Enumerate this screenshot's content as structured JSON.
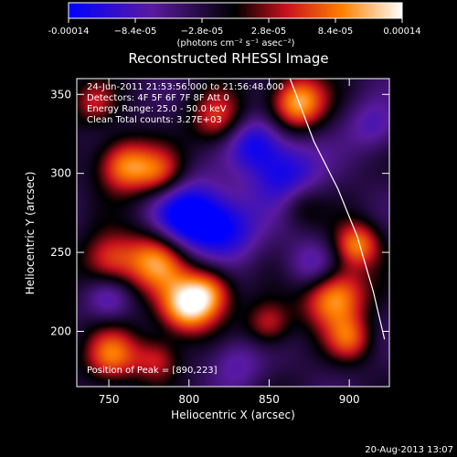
{
  "chart_data": {
    "type": "heatmap",
    "title": "Reconstructed RHESSI Image",
    "xlabel": "Heliocentric X (arcsec)",
    "ylabel": "Heliocentric Y (arcsec)",
    "xlim": [
      730,
      925
    ],
    "ylim": [
      165,
      360
    ],
    "x_ticks": [
      750,
      800,
      850,
      900
    ],
    "y_ticks": [
      200,
      250,
      300,
      350
    ],
    "colorbar": {
      "range": [
        -0.00014,
        0.00014
      ],
      "tick_values": [
        -0.00014,
        -8.4e-05,
        -2.8e-05,
        2.8e-05,
        8.4e-05,
        0.00014
      ],
      "tick_labels": [
        "-0.00014",
        "−8.4e-05",
        "−2.8e-05",
        "2.8e-05",
        "8.4e-05",
        "0.00014"
      ],
      "units": "(photons cm⁻² s⁻¹ asec⁻²)"
    },
    "annotations": [
      "24-Jun-2011 21:53:56.000 to 21:56:48.000",
      "Detectors: 4F 5F 6F 7F 8F   Att 0",
      "Energy Range: 25.0 - 50.0 keV",
      "Clean     Total counts: 3.27E+03"
    ],
    "peak_label": "Position of Peak = [890,223]",
    "peak": [
      890,
      223
    ],
    "limb_points": [
      [
        863,
        360
      ],
      [
        878,
        320
      ],
      [
        893,
        290
      ],
      [
        905,
        260
      ],
      [
        915,
        225
      ],
      [
        922,
        195
      ]
    ],
    "blobs": [
      {
        "x": 800,
        "y": 272,
        "amp": -1.0,
        "s": 16
      },
      {
        "x": 825,
        "y": 265,
        "amp": -0.6,
        "s": 14
      },
      {
        "x": 860,
        "y": 300,
        "amp": -0.7,
        "s": 16
      },
      {
        "x": 840,
        "y": 320,
        "amp": -0.6,
        "s": 12
      },
      {
        "x": 878,
        "y": 240,
        "amp": -0.55,
        "s": 12
      },
      {
        "x": 780,
        "y": 245,
        "amp": 0.9,
        "s": 14
      },
      {
        "x": 798,
        "y": 215,
        "amp": 1.0,
        "s": 12
      },
      {
        "x": 812,
        "y": 225,
        "amp": 0.75,
        "s": 11
      },
      {
        "x": 760,
        "y": 305,
        "amp": 0.85,
        "s": 12
      },
      {
        "x": 782,
        "y": 300,
        "amp": 0.6,
        "s": 11
      },
      {
        "x": 750,
        "y": 245,
        "amp": 0.6,
        "s": 12
      },
      {
        "x": 868,
        "y": 345,
        "amp": 1.0,
        "s": 12
      },
      {
        "x": 818,
        "y": 335,
        "amp": 0.6,
        "s": 12
      },
      {
        "x": 890,
        "y": 223,
        "amp": 1.0,
        "s": 14
      },
      {
        "x": 905,
        "y": 255,
        "amp": 0.8,
        "s": 10
      },
      {
        "x": 850,
        "y": 205,
        "amp": 0.55,
        "s": 10
      },
      {
        "x": 752,
        "y": 185,
        "amp": 0.75,
        "s": 12
      },
      {
        "x": 780,
        "y": 182,
        "amp": 0.5,
        "s": 10
      },
      {
        "x": 900,
        "y": 195,
        "amp": 0.6,
        "s": 10
      },
      {
        "x": 740,
        "y": 345,
        "amp": 0.45,
        "s": 10
      },
      {
        "x": 870,
        "y": 280,
        "amp": 0.35,
        "s": 10
      },
      {
        "x": 830,
        "y": 180,
        "amp": -0.35,
        "s": 12
      },
      {
        "x": 750,
        "y": 220,
        "amp": -0.4,
        "s": 10
      },
      {
        "x": 915,
        "y": 330,
        "amp": -0.4,
        "s": 12
      }
    ]
  },
  "timestamp": "20-Aug-2013 13:07"
}
